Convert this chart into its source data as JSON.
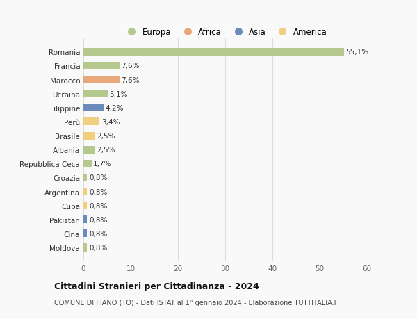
{
  "categories": [
    "Moldova",
    "Cina",
    "Pakistan",
    "Cuba",
    "Argentina",
    "Croazia",
    "Repubblica Ceca",
    "Albania",
    "Brasile",
    "Perù",
    "Filippine",
    "Ucraina",
    "Marocco",
    "Francia",
    "Romania"
  ],
  "values": [
    0.8,
    0.8,
    0.8,
    0.8,
    0.8,
    0.8,
    1.7,
    2.5,
    2.5,
    3.4,
    4.2,
    5.1,
    7.6,
    7.6,
    55.1
  ],
  "labels": [
    "0,8%",
    "0,8%",
    "0,8%",
    "0,8%",
    "0,8%",
    "0,8%",
    "1,7%",
    "2,5%",
    "2,5%",
    "3,4%",
    "4,2%",
    "5,1%",
    "7,6%",
    "7,6%",
    "55,1%"
  ],
  "continents": [
    "Europa",
    "Asia",
    "Asia",
    "America",
    "America",
    "Europa",
    "Europa",
    "Europa",
    "America",
    "America",
    "Asia",
    "Europa",
    "Africa",
    "Europa",
    "Europa"
  ],
  "continent_colors": {
    "Europa": "#b5c98e",
    "Africa": "#e8a87c",
    "Asia": "#6b8cba",
    "America": "#f0d080"
  },
  "legend_order": [
    "Europa",
    "Africa",
    "Asia",
    "America"
  ],
  "xlim": [
    0,
    60
  ],
  "xticks": [
    0,
    10,
    20,
    30,
    40,
    50,
    60
  ],
  "title": "Cittadini Stranieri per Cittadinanza - 2024",
  "subtitle": "COMUNE DI FIANO (TO) - Dati ISTAT al 1° gennaio 2024 - Elaborazione TUTTITALIA.IT",
  "background_color": "#f9f9f9",
  "grid_color": "#dddddd",
  "bar_height": 0.55,
  "label_fontsize": 7.5,
  "tick_fontsize": 7.5
}
